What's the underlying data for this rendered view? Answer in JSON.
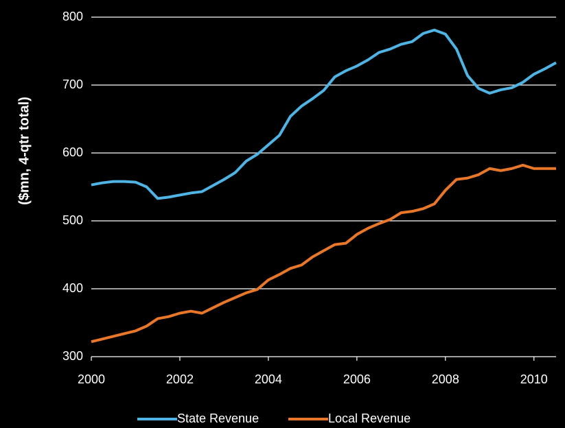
{
  "chart_data": {
    "type": "line",
    "ylabel": "($mn, 4-qtr total)",
    "x": [
      2000,
      2000.25,
      2000.5,
      2000.75,
      2001,
      2001.25,
      2001.5,
      2001.75,
      2002,
      2002.25,
      2002.5,
      2002.75,
      2003,
      2003.25,
      2003.5,
      2003.75,
      2004,
      2004.25,
      2004.5,
      2004.75,
      2005,
      2005.25,
      2005.5,
      2005.75,
      2006,
      2006.25,
      2006.5,
      2006.75,
      2007,
      2007.25,
      2007.5,
      2007.75,
      2008,
      2008.25,
      2008.5,
      2008.75,
      2009,
      2009.25,
      2009.5,
      2009.75,
      2010,
      2010.25,
      2010.5
    ],
    "series": [
      {
        "name": "State Revenue",
        "color": "#4fb3e3",
        "values": [
          553,
          556,
          558,
          558,
          557,
          550,
          533,
          535,
          538,
          541,
          543,
          552,
          561,
          571,
          588,
          598,
          612,
          626,
          654,
          669,
          680,
          692,
          712,
          721,
          728,
          737,
          748,
          753,
          760,
          764,
          776,
          781,
          775,
          753,
          714,
          695,
          688,
          693,
          696,
          704,
          716,
          724,
          733
        ]
      },
      {
        "name": "Local Revenue",
        "color": "#e8772a",
        "values": [
          322,
          326,
          330,
          334,
          338,
          345,
          356,
          359,
          364,
          367,
          364,
          372,
          380,
          387,
          394,
          399,
          413,
          421,
          430,
          435,
          447,
          456,
          465,
          467,
          480,
          489,
          496,
          502,
          512,
          514,
          518,
          525,
          545,
          561,
          563,
          568,
          577,
          574,
          577,
          582,
          577,
          577,
          577
        ]
      }
    ],
    "xlim": [
      2000,
      2010.5
    ],
    "xticks": [
      2000,
      2002,
      2004,
      2006,
      2008,
      2010
    ],
    "ylim": [
      300,
      800
    ],
    "yticks": [
      300,
      400,
      500,
      600,
      700,
      800
    ],
    "grid": true,
    "legend": "bottom"
  }
}
